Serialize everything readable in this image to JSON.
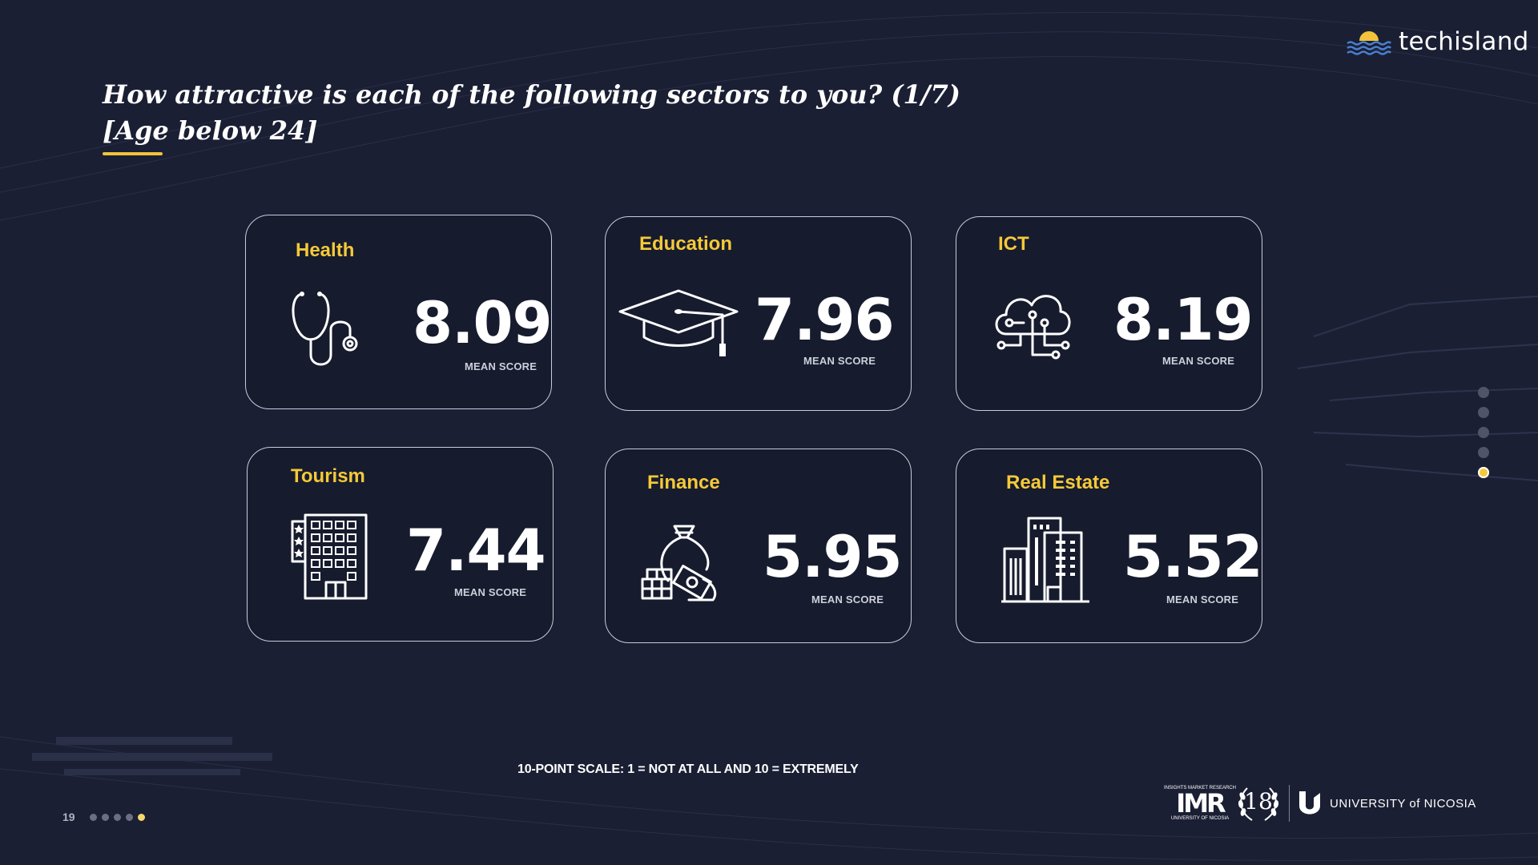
{
  "brand": {
    "name": "techisland"
  },
  "title": {
    "line1": "How attractive is each of the following sectors to you? (1/7)",
    "line2": "[Age below 24]"
  },
  "cards": [
    {
      "title": "Health",
      "value": "8.09",
      "label": "MEAN SCORE",
      "icon": "stethoscope-icon"
    },
    {
      "title": "Education",
      "value": "7.96",
      "label": "MEAN SCORE",
      "icon": "graduation-cap-icon"
    },
    {
      "title": "ICT",
      "value": "8.19",
      "label": "MEAN SCORE",
      "icon": "cloud-circuit-icon"
    },
    {
      "title": "Tourism",
      "value": "7.44",
      "label": "MEAN SCORE",
      "icon": "hotel-icon"
    },
    {
      "title": "Finance",
      "value": "5.95",
      "label": "MEAN SCORE",
      "icon": "money-bag-icon"
    },
    {
      "title": "Real Estate",
      "value": "5.52",
      "label": "MEAN SCORE",
      "icon": "buildings-icon"
    }
  ],
  "footnote": "10-POINT SCALE: 1 = NOT AT ALL  AND 10 = EXTREMELY",
  "page": {
    "number": "19"
  },
  "partners": {
    "imr_top": "INSIGHTS MARKET RESEARCH",
    "imr_main": "IMR",
    "imr_bottom": "UNIVERSITY OF NICOSIA",
    "anniversary": "18",
    "unic": "UNIVERSITY of NICOSIA"
  },
  "colors": {
    "background": "#1a1f33",
    "accent": "#f5c938",
    "card_border": "#c9ccd8"
  }
}
